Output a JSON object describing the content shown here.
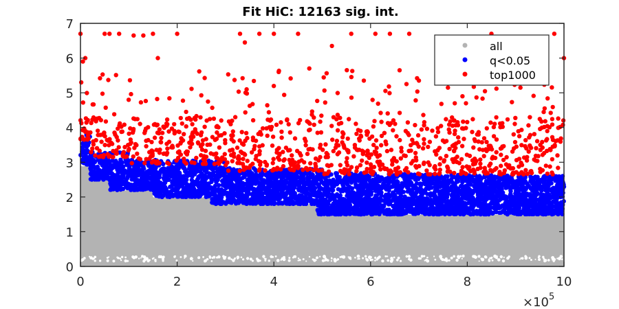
{
  "chart_data": {
    "type": "scatter",
    "title": "Fit HiC: 12163 sig. int.",
    "xlabel": "",
    "ylabel": "",
    "xlim": [
      0,
      1000000
    ],
    "ylim": [
      0,
      7
    ],
    "xticks": [
      0,
      200000,
      400000,
      600000,
      800000,
      1000000
    ],
    "xtick_labels": [
      "0",
      "2",
      "4",
      "6",
      "8",
      "10"
    ],
    "x_multiplier": {
      "base": "×10",
      "exponent": "5"
    },
    "yticks": [
      0,
      1,
      2,
      3,
      4,
      5,
      6,
      7
    ],
    "ytick_labels": [
      "0",
      "1",
      "2",
      "3",
      "4",
      "5",
      "6",
      "7"
    ],
    "grid": false,
    "legend_position": "top-right",
    "series": [
      {
        "name": "all",
        "color": "#b3b3b3",
        "description_of_extent": "dense band of points from y≈0 up to a decaying upper edge",
        "upper_edge": {
          "x": [
            0,
            20000,
            60000,
            150000,
            270000,
            490000,
            1000000
          ],
          "y": [
            2.9,
            2.5,
            2.2,
            2.0,
            1.8,
            1.5,
            1.5
          ]
        },
        "lower_gap_y": [
          0.15,
          0.3
        ]
      },
      {
        "name": "q<0.05",
        "color": "#0000ff",
        "upper_edge": {
          "x": [
            0,
            20000,
            100000,
            300000,
            500000,
            1000000
          ],
          "y": [
            3.8,
            3.3,
            3.1,
            2.9,
            2.8,
            2.7
          ]
        },
        "lower_edge": {
          "x": [
            0,
            20000,
            60000,
            150000,
            270000,
            490000,
            1000000
          ],
          "y": [
            2.9,
            2.5,
            2.2,
            2.0,
            1.8,
            1.5,
            1.5
          ]
        }
      },
      {
        "name": "top1000",
        "color": "#ff0000",
        "dense_band_top": 4.0,
        "scatter_max": 6.7,
        "sample_points": [
          [
            0,
            6.7
          ],
          [
            5000,
            5.9
          ],
          [
            10000,
            6.0
          ],
          [
            50000,
            6.7
          ],
          [
            60000,
            6.7
          ],
          [
            80000,
            6.7
          ],
          [
            110000,
            6.65
          ],
          [
            130000,
            6.65
          ],
          [
            150000,
            6.7
          ],
          [
            160000,
            6.0
          ],
          [
            200000,
            6.7
          ],
          [
            330000,
            6.7
          ],
          [
            340000,
            6.45
          ],
          [
            370000,
            6.7
          ],
          [
            400000,
            6.7
          ],
          [
            450000,
            6.7
          ],
          [
            560000,
            6.7
          ],
          [
            610000,
            6.7
          ],
          [
            640000,
            6.7
          ],
          [
            680000,
            6.7
          ],
          [
            850000,
            6.7
          ],
          [
            980000,
            6.7
          ],
          [
            1000000,
            6.0
          ],
          [
            520000,
            6.35
          ],
          [
            660000,
            5.65
          ],
          [
            410000,
            5.6
          ],
          [
            700000,
            5.35
          ],
          [
            760000,
            5.15
          ],
          [
            790000,
            4.9
          ],
          [
            910000,
            5.15
          ],
          [
            960000,
            4.55
          ]
        ]
      }
    ]
  }
}
